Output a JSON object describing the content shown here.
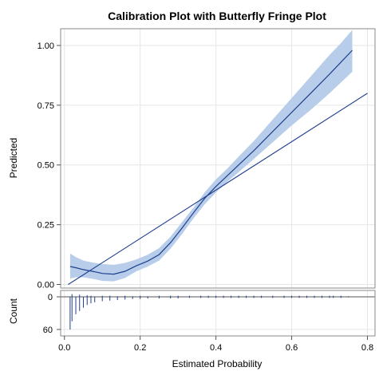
{
  "chart_data": {
    "type": "line",
    "title": "Calibration Plot with Butterfly Fringe Plot",
    "xlabel": "Estimated Probability",
    "ylabel": "Predicted",
    "count_label": "Count",
    "xlim": [
      -0.01,
      0.82
    ],
    "ylim": [
      -0.015,
      1.07
    ],
    "count_lim": [
      0,
      66
    ],
    "x_ticks": [
      "0.0",
      "0.2",
      "0.4",
      "0.6",
      "0.8"
    ],
    "x_tick_values": [
      0,
      0.2,
      0.4,
      0.6,
      0.8
    ],
    "y_ticks": [
      "0.00",
      "0.25",
      "0.50",
      "0.75",
      "1.00"
    ],
    "y_tick_values": [
      0,
      0.25,
      0.5,
      0.75,
      1.0
    ],
    "count_ticks": [
      "0",
      "60"
    ],
    "count_tick_values": [
      0,
      60
    ],
    "grid": true,
    "colors": {
      "line": "#1F3F8F",
      "band": "#B7CDE9",
      "grid": "#E6E6E6",
      "frame": "#8A8A8A"
    },
    "series": [
      {
        "kind": "identity",
        "x": [
          0.01,
          0.8
        ],
        "y": [
          0.0,
          0.8
        ]
      },
      {
        "kind": "smooth",
        "x": [
          0.015,
          0.03,
          0.05,
          0.08,
          0.1,
          0.13,
          0.16,
          0.19,
          0.22,
          0.25,
          0.28,
          0.31,
          0.34,
          0.37,
          0.4,
          0.43,
          0.46,
          0.5,
          0.55,
          0.6,
          0.65,
          0.7,
          0.73,
          0.76
        ],
        "y": [
          0.075,
          0.07,
          0.062,
          0.053,
          0.046,
          0.043,
          0.055,
          0.078,
          0.098,
          0.125,
          0.175,
          0.235,
          0.298,
          0.36,
          0.41,
          0.455,
          0.5,
          0.56,
          0.64,
          0.72,
          0.8,
          0.88,
          0.93,
          0.98
        ],
        "lower": [
          0.025,
          0.03,
          0.03,
          0.022,
          0.015,
          0.013,
          0.027,
          0.055,
          0.075,
          0.1,
          0.15,
          0.21,
          0.275,
          0.335,
          0.385,
          0.43,
          0.47,
          0.525,
          0.595,
          0.665,
          0.73,
          0.8,
          0.845,
          0.89
        ],
        "upper": [
          0.13,
          0.115,
          0.1,
          0.09,
          0.085,
          0.082,
          0.09,
          0.105,
          0.125,
          0.152,
          0.2,
          0.26,
          0.32,
          0.385,
          0.44,
          0.485,
          0.535,
          0.6,
          0.69,
          0.78,
          0.87,
          0.96,
          1.01,
          1.065
        ]
      }
    ],
    "fringe": {
      "x": [
        0.015,
        0.02,
        0.03,
        0.04,
        0.05,
        0.06,
        0.07,
        0.08,
        0.1,
        0.12,
        0.14,
        0.16,
        0.18,
        0.2,
        0.22,
        0.25,
        0.28,
        0.3,
        0.33,
        0.36,
        0.38,
        0.4,
        0.42,
        0.44,
        0.46,
        0.48,
        0.5,
        0.52,
        0.55,
        0.58,
        0.6,
        0.62,
        0.64,
        0.66,
        0.68,
        0.7,
        0.71,
        0.73,
        0.75
      ],
      "counts": [
        60,
        45,
        32,
        26,
        20,
        15,
        12,
        10,
        8,
        7,
        6,
        5,
        4,
        4,
        3,
        3,
        3,
        3,
        2,
        2,
        2,
        2,
        2,
        2,
        2,
        2,
        2,
        2,
        2,
        2,
        2,
        2,
        2,
        2,
        2,
        2,
        2,
        2,
        1
      ],
      "events": [
        0,
        5,
        0,
        4,
        0,
        3,
        2,
        0,
        2,
        2,
        1,
        2,
        1,
        2,
        1,
        2,
        2,
        2,
        2,
        2,
        2,
        2,
        2,
        2,
        2,
        2,
        2,
        2,
        2,
        2,
        2,
        2,
        2,
        2,
        2,
        2,
        2,
        2,
        1
      ]
    }
  }
}
